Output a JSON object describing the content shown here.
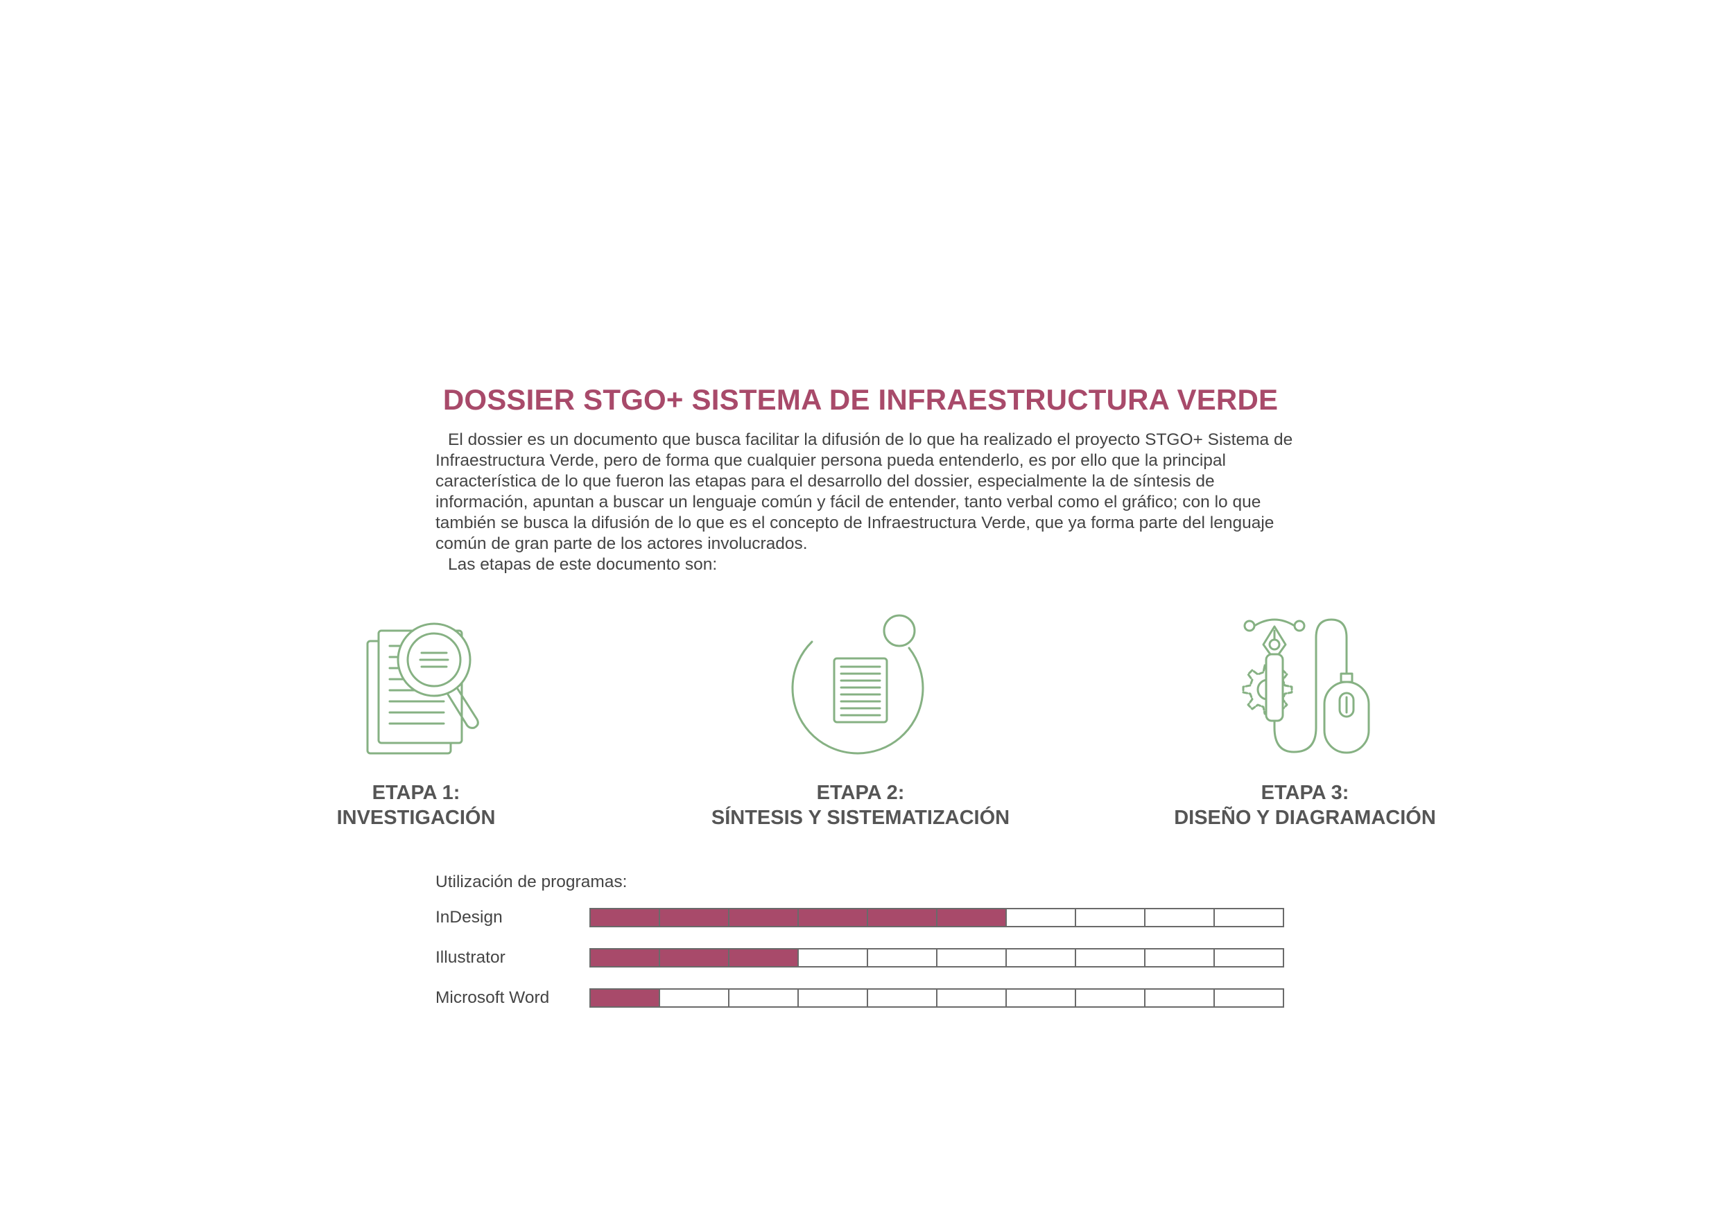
{
  "document": {
    "title": "DOSSIER STGO+ SISTEMA DE INFRAESTRUCTURA VERDE",
    "intro_paragraph_1": "El dossier es un documento que busca facilitar la difusión de lo que ha realizado el proyecto STGO+ Sistema de Infraestructura Verde, pero de forma que cualquier persona pueda entenderlo, es por ello que la principal característica de lo que fueron las etapas para el desarrollo del dossier, especialmente la de síntesis de información, apuntan a buscar un lenguaje común y fácil de entender, tanto verbal como el gráfico; con lo que también se busca la difusión de lo que es el concepto de Infraestructura Verde, que ya forma parte del lenguaje común de gran parte de los actores involucrados.",
    "intro_paragraph_2": "Las etapas de este documento son:"
  },
  "stages": [
    {
      "number_label": "ETAPA 1:",
      "name": "INVESTIGACIÓN",
      "icon": "document-magnifier-icon"
    },
    {
      "number_label": "ETAPA 2:",
      "name": "SÍNTESIS Y SISTEMATIZACIÓN",
      "icon": "document-cycle-icon"
    },
    {
      "number_label": "ETAPA 3:",
      "name": "DISEÑO Y DIAGRAMACIÓN",
      "icon": "pen-mouse-gear-icon"
    }
  ],
  "skills": {
    "title": "Utilización de programas:",
    "scale_max": 10,
    "items": [
      {
        "name": "InDesign",
        "level": 6
      },
      {
        "name": "Illustrator",
        "level": 3
      },
      {
        "name": "Microsoft Word",
        "level": 1
      }
    ]
  },
  "colors": {
    "accent": "#A84A6A",
    "icon_stroke": "#86B183",
    "text": "#444444",
    "stage_label": "#555555"
  }
}
